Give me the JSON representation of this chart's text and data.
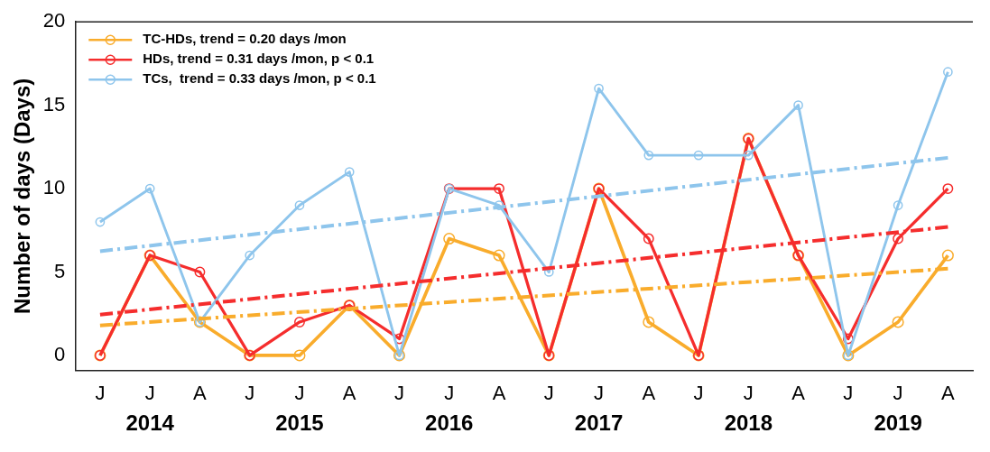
{
  "chart_data": {
    "type": "line",
    "ylabel": "Number of days (Days)",
    "categories": [
      "J",
      "J",
      "A",
      "J",
      "J",
      "A",
      "J",
      "J",
      "A",
      "J",
      "J",
      "A",
      "J",
      "J",
      "A",
      "J",
      "J",
      "A"
    ],
    "annotations": [
      "2014",
      "2015",
      "2016",
      "2017",
      "2018",
      "2019"
    ],
    "ylim": [
      -0.9,
      20
    ],
    "yticks": [
      0,
      5,
      10,
      15,
      20
    ],
    "grid": false,
    "legend": "top left",
    "series": [
      {
        "name": "TC-HDs, trend = 0.20 days /mon",
        "color": "#f9ac2c",
        "marker": "circle",
        "line_style": "solid",
        "values": [
          0,
          6,
          2,
          0,
          0,
          3,
          0,
          7,
          6,
          0,
          10,
          2,
          0,
          13,
          6,
          0,
          2,
          6
        ]
      },
      {
        "name": "HDs, trend = 0.31 days /mon, p < 0.1",
        "color": "#f52d2d",
        "marker": "circle",
        "line_style": "solid",
        "values": [
          0,
          6,
          5,
          0,
          2,
          3,
          1,
          10,
          10,
          0,
          10,
          7,
          0,
          13,
          6,
          1,
          7,
          10
        ]
      },
      {
        "name": "TCs,  trend = 0.33 days /mon, p < 0.1",
        "color": "#8ec5ec",
        "marker": "circle",
        "line_style": "solid",
        "values": [
          8,
          10,
          2,
          6,
          9,
          11,
          0,
          10,
          9,
          5,
          16,
          12,
          12,
          12,
          15,
          0,
          9,
          17
        ]
      },
      {
        "color": "#f9ac2c",
        "marker": "none",
        "line_style": "dashed",
        "values": [
          1.8,
          null,
          null,
          null,
          null,
          null,
          null,
          null,
          null,
          null,
          null,
          null,
          null,
          null,
          null,
          null,
          null,
          5.2
        ]
      },
      {
        "color": "#f52d2d",
        "marker": "none",
        "line_style": "dashed",
        "values": [
          2.45,
          null,
          null,
          null,
          null,
          null,
          null,
          null,
          null,
          null,
          null,
          null,
          null,
          null,
          null,
          null,
          null,
          7.7
        ]
      },
      {
        "color": "#8ec5ec",
        "marker": "none",
        "line_style": "dashed",
        "values": [
          6.25,
          null,
          null,
          null,
          null,
          null,
          null,
          null,
          null,
          null,
          null,
          null,
          null,
          null,
          null,
          null,
          null,
          11.85
        ]
      }
    ]
  }
}
